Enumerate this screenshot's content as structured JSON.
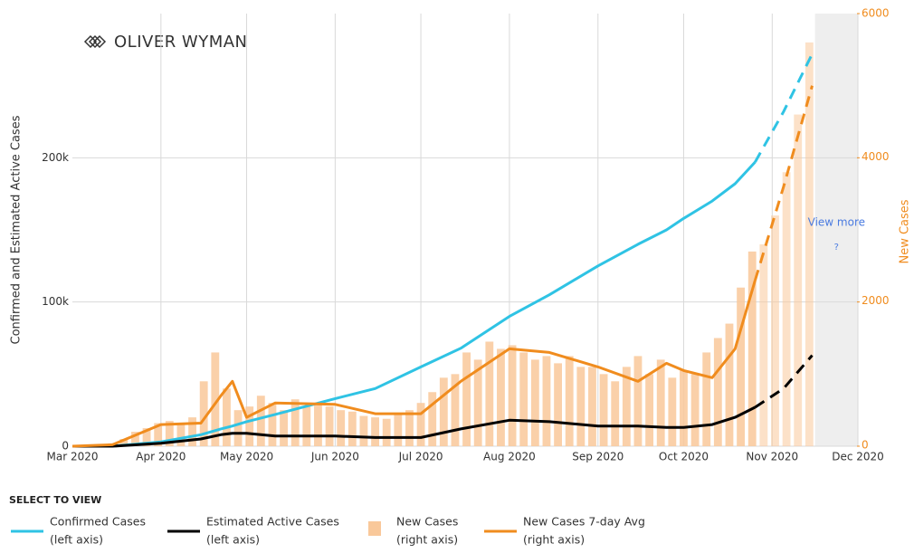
{
  "chart_data": {
    "type": "line",
    "logo": "OLIVER WYMAN",
    "ylabel": "Confirmed and Estimated Active Cases",
    "y2label": "New Cases",
    "xlim": [
      0,
      275
    ],
    "xticks": [
      {
        "value": 0,
        "label": "Mar 2020"
      },
      {
        "value": 31,
        "label": "Apr 2020"
      },
      {
        "value": 61,
        "label": "May 2020"
      },
      {
        "value": 92,
        "label": "Jun 2020"
      },
      {
        "value": 122,
        "label": "Jul 2020"
      },
      {
        "value": 153,
        "label": "Aug 2020"
      },
      {
        "value": 184,
        "label": "Sep 2020"
      },
      {
        "value": 214,
        "label": "Oct 2020"
      },
      {
        "value": 245,
        "label": "Nov 2020"
      },
      {
        "value": 275,
        "label": "Dec 2020"
      }
    ],
    "ylim": [
      0,
      300000
    ],
    "yticks": [
      0,
      {
        "value": 100000,
        "label": "100k"
      },
      {
        "value": 200000,
        "label": "200k"
      }
    ],
    "y2lim": [
      0,
      6000
    ],
    "y2ticks": [
      0,
      2000,
      4000,
      6000
    ],
    "grid": true,
    "forecast_from": 239,
    "view_more": {
      "from": 260,
      "label": "View more",
      "icon": "?"
    },
    "legend_title": "SELECT TO VIEW",
    "series": [
      {
        "name": "Confirmed Cases",
        "axis_note": "(left axis)",
        "kind": "line",
        "color": "#2fc3e4",
        "x": [
          0,
          14,
          31,
          45,
          52,
          56,
          61,
          71,
          92,
          106,
          122,
          136,
          153,
          167,
          184,
          198,
          208,
          214,
          224,
          232,
          239,
          249,
          259
        ],
        "values": [
          0,
          0,
          3000,
          8000,
          12000,
          14000,
          17000,
          22000,
          33000,
          40000,
          55000,
          68000,
          90000,
          105000,
          125000,
          140000,
          150000,
          158000,
          170000,
          182000,
          197000,
          232000,
          272000
        ]
      },
      {
        "name": "Estimated Active Cases",
        "axis_note": "(left axis)",
        "kind": "line",
        "color": "#000000",
        "x": [
          0,
          14,
          31,
          45,
          52,
          56,
          61,
          71,
          92,
          106,
          122,
          136,
          153,
          167,
          184,
          198,
          208,
          214,
          224,
          232,
          239,
          249,
          259
        ],
        "values": [
          0,
          0,
          2000,
          5000,
          8000,
          9000,
          9000,
          7000,
          7000,
          6000,
          6000,
          12000,
          18000,
          17000,
          14000,
          14000,
          13000,
          13000,
          15000,
          20000,
          27000,
          40000,
          63000
        ]
      },
      {
        "name": "New Cases",
        "axis_note": "(right axis)",
        "kind": "bar",
        "axis": "y2",
        "color": "#f9c89a",
        "x": [
          14,
          18,
          22,
          26,
          30,
          34,
          38,
          42,
          46,
          50,
          54,
          58,
          62,
          66,
          70,
          74,
          78,
          82,
          86,
          90,
          94,
          98,
          102,
          106,
          110,
          114,
          118,
          122,
          126,
          130,
          134,
          138,
          142,
          146,
          150,
          154,
          158,
          162,
          166,
          170,
          174,
          178,
          182,
          186,
          190,
          194,
          198,
          202,
          206,
          210,
          214,
          218,
          222,
          226,
          230,
          234,
          238,
          242,
          246,
          250,
          254,
          258
        ],
        "values": [
          40,
          100,
          200,
          250,
          320,
          350,
          300,
          400,
          900,
          1300,
          800,
          500,
          550,
          700,
          600,
          500,
          650,
          550,
          600,
          550,
          500,
          480,
          420,
          400,
          380,
          450,
          500,
          600,
          750,
          950,
          1000,
          1300,
          1200,
          1450,
          1350,
          1400,
          1300,
          1200,
          1250,
          1150,
          1250,
          1100,
          1100,
          1000,
          900,
          1100,
          1250,
          1000,
          1200,
          950,
          1050,
          1000,
          1300,
          1500,
          1700,
          2200,
          2700,
          2800,
          3200,
          3800,
          4600,
          5600
        ]
      },
      {
        "name": "New Cases 7-day Avg",
        "axis_note": "(right axis)",
        "kind": "line",
        "axis": "y2",
        "color": "#f08c1e",
        "x": [
          0,
          14,
          31,
          45,
          52,
          56,
          61,
          71,
          92,
          106,
          122,
          136,
          153,
          167,
          184,
          198,
          208,
          214,
          224,
          232,
          239,
          249,
          259
        ],
        "values": [
          0,
          20,
          300,
          320,
          700,
          900,
          400,
          600,
          580,
          450,
          450,
          900,
          1350,
          1300,
          1100,
          900,
          1150,
          1050,
          950,
          1350,
          2300,
          3600,
          5000
        ]
      }
    ]
  }
}
